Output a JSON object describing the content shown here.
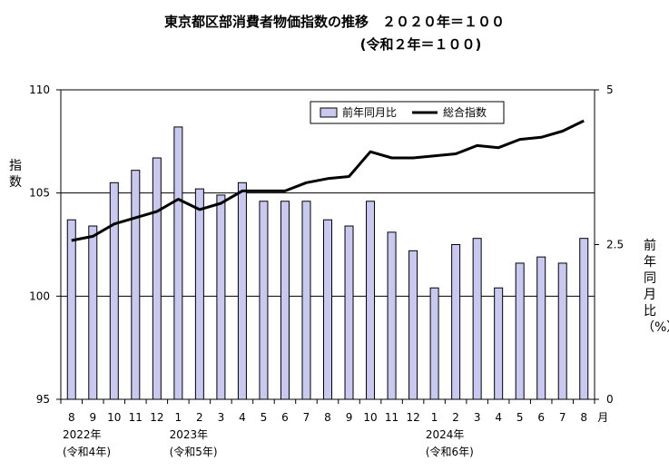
{
  "title_line1": "東京都区部消費者物価指数の推移　２０２０年＝１００",
  "title_line2": "(令和２年＝１００)",
  "left_axis_label": "指数",
  "right_axis_label": "前年同月比（%）",
  "month_suffix": "月",
  "year_labels": [
    {
      "year": "2022年",
      "era": "(令和4年)",
      "at_index": 0
    },
    {
      "year": "2023年",
      "era": "(令和5年)",
      "at_index": 5
    },
    {
      "year": "2024年",
      "era": "(令和6年)",
      "at_index": 17
    }
  ],
  "colors": {
    "bar_fill": "#c8c8f0",
    "bar_stroke": "#000000",
    "line": "#000000",
    "grid": "#000000"
  },
  "chart_data": {
    "type": "bar",
    "categories": [
      "8",
      "9",
      "10",
      "11",
      "12",
      "1",
      "2",
      "3",
      "4",
      "5",
      "6",
      "7",
      "8",
      "9",
      "10",
      "11",
      "12",
      "1",
      "2",
      "3",
      "4",
      "5",
      "6",
      "7",
      "8"
    ],
    "series": [
      {
        "name": "前年同月比",
        "type": "bar",
        "axis": "right",
        "values": [
          2.9,
          2.8,
          3.5,
          3.7,
          3.9,
          4.4,
          3.4,
          3.3,
          3.5,
          3.2,
          3.2,
          3.2,
          2.9,
          2.8,
          3.2,
          2.7,
          2.4,
          1.8,
          2.5,
          2.6,
          1.8,
          2.2,
          2.3,
          2.2,
          2.6
        ]
      },
      {
        "name": "総合指数",
        "type": "line",
        "axis": "left",
        "values": [
          102.7,
          102.9,
          103.5,
          103.8,
          104.1,
          104.7,
          104.2,
          104.5,
          105.1,
          105.1,
          105.1,
          105.5,
          105.7,
          105.8,
          107.0,
          106.7,
          106.7,
          106.8,
          106.9,
          107.3,
          107.2,
          107.6,
          107.7,
          108.0,
          108.5
        ]
      }
    ],
    "y_left": {
      "ylim": [
        95,
        110
      ],
      "ticks": [
        "95",
        "100",
        "105",
        "110"
      ]
    },
    "y_right": {
      "ylim": [
        0,
        5
      ],
      "ticks": [
        "0",
        "2.5",
        "5"
      ]
    },
    "legend": {
      "placement": "top-right",
      "entries": [
        "前年同月比",
        "総合指数"
      ]
    },
    "grid": {
      "horizontal_at_left": [
        100,
        105
      ]
    }
  }
}
